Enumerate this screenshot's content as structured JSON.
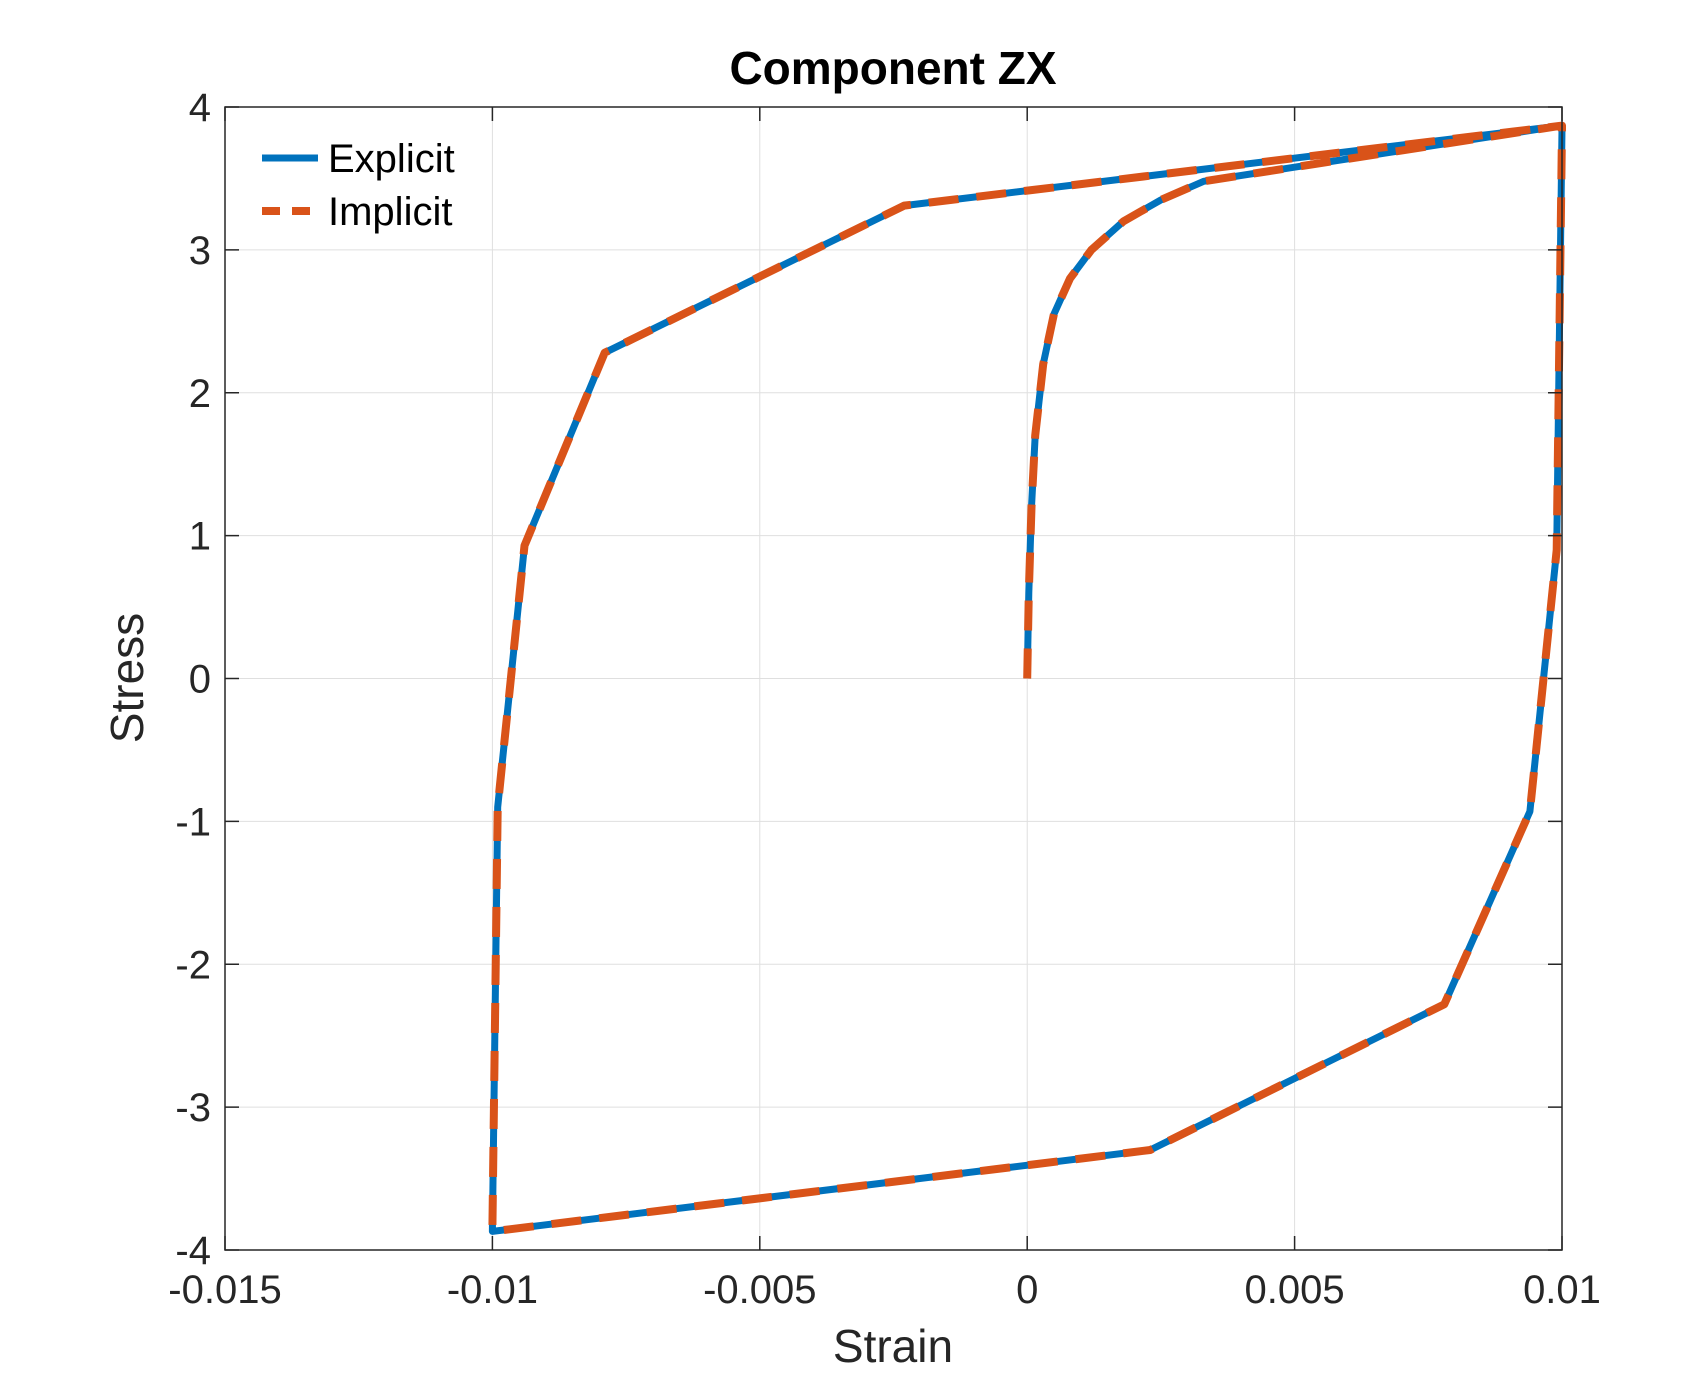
{
  "chart_data": {
    "type": "line",
    "title": "Component ZX",
    "xlabel": "Strain",
    "ylabel": "Stress",
    "xlim": [
      -0.015,
      0.01
    ],
    "ylim": [
      -4,
      4
    ],
    "xticks": [
      -0.015,
      -0.01,
      -0.005,
      0,
      0.005,
      0.01
    ],
    "xtick_labels": [
      "-0.015",
      "-0.01",
      "-0.005",
      "0",
      "0.005",
      "0.01"
    ],
    "yticks": [
      -4,
      -3,
      -2,
      -1,
      0,
      1,
      2,
      3,
      4
    ],
    "ytick_labels": [
      "-4",
      "-3",
      "-2",
      "-1",
      "0",
      "1",
      "2",
      "3",
      "4"
    ],
    "grid": true,
    "legend_position": "top-left",
    "series": [
      {
        "name": "Explicit",
        "color": "#0072BD",
        "style": "solid",
        "x": [
          0,
          3e-05,
          8e-05,
          0.00015,
          0.0003,
          0.0005,
          0.0008,
          0.0012,
          0.0018,
          0.0025,
          0.0033,
          0.01,
          0.01,
          0.0099,
          0.0094,
          0.0078,
          0.0023,
          -0.01,
          -0.01,
          -0.0099,
          -0.0094,
          -0.0079,
          -0.0023,
          0.01
        ],
        "y": [
          0,
          0.6,
          1.2,
          1.7,
          2.2,
          2.55,
          2.8,
          3.0,
          3.2,
          3.35,
          3.48,
          3.87,
          3.85,
          0.9,
          -0.93,
          -2.28,
          -3.3,
          -3.87,
          -3.85,
          -0.9,
          0.93,
          2.28,
          3.31,
          3.87
        ]
      },
      {
        "name": "Implicit",
        "color": "#D95319",
        "style": "dashed",
        "x": [
          0,
          3e-05,
          8e-05,
          0.00015,
          0.0003,
          0.0005,
          0.0008,
          0.0012,
          0.0018,
          0.0025,
          0.0033,
          0.01,
          0.01,
          0.0099,
          0.0094,
          0.0078,
          0.0023,
          -0.01,
          -0.01,
          -0.0099,
          -0.0094,
          -0.0079,
          -0.0023,
          0.01
        ],
        "y": [
          0,
          0.6,
          1.2,
          1.7,
          2.2,
          2.55,
          2.8,
          3.0,
          3.2,
          3.35,
          3.48,
          3.87,
          3.85,
          0.9,
          -0.93,
          -2.28,
          -3.3,
          -3.87,
          -3.85,
          -0.9,
          0.93,
          2.28,
          3.31,
          3.87
        ]
      }
    ]
  }
}
